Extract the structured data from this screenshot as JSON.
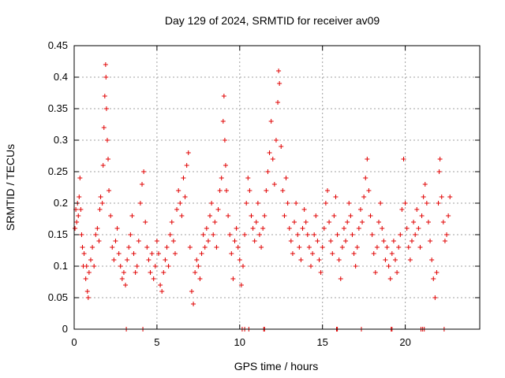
{
  "chart_data": {
    "type": "scatter",
    "title": "Day 129 of 2024, SRMTID for receiver av09",
    "xlabel": "GPS time / hours",
    "ylabel": "SRMTID / TECUs",
    "xlim": [
      0,
      24.5
    ],
    "ylim": [
      0,
      0.45
    ],
    "xticks": [
      0,
      5,
      10,
      15,
      20
    ],
    "xtick_labels": [
      "0",
      "5",
      "10",
      "15",
      "20"
    ],
    "yticks": [
      0,
      0.05,
      0.1,
      0.15,
      0.2,
      0.25,
      0.3,
      0.35,
      0.4,
      0.45
    ],
    "ytick_labels": [
      "0",
      "0.05",
      "0.1",
      "0.15",
      "0.2",
      "0.25",
      "0.3",
      "0.35",
      "0.4",
      "0.45"
    ],
    "grid": true,
    "marker": "+",
    "color": "#e00000",
    "series": [
      {
        "name": "SRMTID",
        "points": [
          [
            0.05,
            0.16
          ],
          [
            0.1,
            0.19
          ],
          [
            0.15,
            0.17
          ],
          [
            0.2,
            0.2
          ],
          [
            0.25,
            0.18
          ],
          [
            0.3,
            0.21
          ],
          [
            0.35,
            0.24
          ],
          [
            0.4,
            0.19
          ],
          [
            0.45,
            0.15
          ],
          [
            0.5,
            0.13
          ],
          [
            0.55,
            0.1
          ],
          [
            0.6,
            0.12
          ],
          [
            0.7,
            0.08
          ],
          [
            0.75,
            0.1
          ],
          [
            0.8,
            0.06
          ],
          [
            0.85,
            0.05
          ],
          [
            0.9,
            0.09
          ],
          [
            1.0,
            0.11
          ],
          [
            1.1,
            0.13
          ],
          [
            1.2,
            0.1
          ],
          [
            1.3,
            0.15
          ],
          [
            1.4,
            0.16
          ],
          [
            1.5,
            0.14
          ],
          [
            1.55,
            0.19
          ],
          [
            1.6,
            0.21
          ],
          [
            1.7,
            0.2
          ],
          [
            1.75,
            0.26
          ],
          [
            1.8,
            0.32
          ],
          [
            1.85,
            0.37
          ],
          [
            1.9,
            0.42
          ],
          [
            1.92,
            0.4
          ],
          [
            1.95,
            0.35
          ],
          [
            2.0,
            0.3
          ],
          [
            2.05,
            0.27
          ],
          [
            2.1,
            0.22
          ],
          [
            2.2,
            0.18
          ],
          [
            2.3,
            0.13
          ],
          [
            2.4,
            0.11
          ],
          [
            2.5,
            0.14
          ],
          [
            2.6,
            0.16
          ],
          [
            2.7,
            0.12
          ],
          [
            2.8,
            0.1
          ],
          [
            2.9,
            0.08
          ],
          [
            3.0,
            0.09
          ],
          [
            3.1,
            0.07
          ],
          [
            3.2,
            0.11
          ],
          [
            3.3,
            0.13
          ],
          [
            3.4,
            0.15
          ],
          [
            3.5,
            0.18
          ],
          [
            3.6,
            0.12
          ],
          [
            3.7,
            0.09
          ],
          [
            3.8,
            0.1
          ],
          [
            3.9,
            0.14
          ],
          [
            4.0,
            0.2
          ],
          [
            4.1,
            0.23
          ],
          [
            4.2,
            0.25
          ],
          [
            4.3,
            0.17
          ],
          [
            4.4,
            0.13
          ],
          [
            4.5,
            0.11
          ],
          [
            4.6,
            0.09
          ],
          [
            4.7,
            0.12
          ],
          [
            4.8,
            0.08
          ],
          [
            4.9,
            0.1
          ],
          [
            5.0,
            0.14
          ],
          [
            5.1,
            0.12
          ],
          [
            5.2,
            0.07
          ],
          [
            5.3,
            0.06
          ],
          [
            5.4,
            0.09
          ],
          [
            5.5,
            0.11
          ],
          [
            5.6,
            0.13
          ],
          [
            5.7,
            0.1
          ],
          [
            5.8,
            0.15
          ],
          [
            5.9,
            0.17
          ],
          [
            6.0,
            0.14
          ],
          [
            6.1,
            0.12
          ],
          [
            6.2,
            0.19
          ],
          [
            6.3,
            0.22
          ],
          [
            6.4,
            0.2
          ],
          [
            6.5,
            0.18
          ],
          [
            6.6,
            0.24
          ],
          [
            6.7,
            0.21
          ],
          [
            6.8,
            0.26
          ],
          [
            6.9,
            0.28
          ],
          [
            7.0,
            0.13
          ],
          [
            7.1,
            0.06
          ],
          [
            7.2,
            0.04
          ],
          [
            7.3,
            0.09
          ],
          [
            7.4,
            0.11
          ],
          [
            7.5,
            0.1
          ],
          [
            7.6,
            0.08
          ],
          [
            7.7,
            0.12
          ],
          [
            7.8,
            0.15
          ],
          [
            7.9,
            0.13
          ],
          [
            8.0,
            0.16
          ],
          [
            8.1,
            0.14
          ],
          [
            8.2,
            0.18
          ],
          [
            8.3,
            0.2
          ],
          [
            8.4,
            0.15
          ],
          [
            8.5,
            0.17
          ],
          [
            8.6,
            0.13
          ],
          [
            8.7,
            0.19
          ],
          [
            8.8,
            0.22
          ],
          [
            8.9,
            0.24
          ],
          [
            9.0,
            0.33
          ],
          [
            9.05,
            0.37
          ],
          [
            9.1,
            0.3
          ],
          [
            9.15,
            0.26
          ],
          [
            9.2,
            0.22
          ],
          [
            9.3,
            0.18
          ],
          [
            9.4,
            0.15
          ],
          [
            9.5,
            0.12
          ],
          [
            9.6,
            0.08
          ],
          [
            9.7,
            0.14
          ],
          [
            9.8,
            0.16
          ],
          [
            9.9,
            0.13
          ],
          [
            10.0,
            0.11
          ],
          [
            10.1,
            0.07
          ],
          [
            10.2,
            0.1
          ],
          [
            10.3,
            0.15
          ],
          [
            10.4,
            0.2
          ],
          [
            10.5,
            0.24
          ],
          [
            10.6,
            0.22
          ],
          [
            10.7,
            0.18
          ],
          [
            10.8,
            0.16
          ],
          [
            10.9,
            0.14
          ],
          [
            11.0,
            0.17
          ],
          [
            11.1,
            0.2
          ],
          [
            11.2,
            0.15
          ],
          [
            11.3,
            0.13
          ],
          [
            11.4,
            0.16
          ],
          [
            11.5,
            0.18
          ],
          [
            11.6,
            0.22
          ],
          [
            11.7,
            0.25
          ],
          [
            11.8,
            0.28
          ],
          [
            11.9,
            0.33
          ],
          [
            12.0,
            0.27
          ],
          [
            12.1,
            0.23
          ],
          [
            12.2,
            0.3
          ],
          [
            12.3,
            0.36
          ],
          [
            12.35,
            0.41
          ],
          [
            12.4,
            0.39
          ],
          [
            12.5,
            0.29
          ],
          [
            12.6,
            0.22
          ],
          [
            12.7,
            0.18
          ],
          [
            12.8,
            0.24
          ],
          [
            12.9,
            0.2
          ],
          [
            13.0,
            0.16
          ],
          [
            13.1,
            0.14
          ],
          [
            13.2,
            0.12
          ],
          [
            13.3,
            0.17
          ],
          [
            13.4,
            0.2
          ],
          [
            13.5,
            0.15
          ],
          [
            13.6,
            0.13
          ],
          [
            13.7,
            0.11
          ],
          [
            13.8,
            0.16
          ],
          [
            13.9,
            0.19
          ],
          [
            14.0,
            0.17
          ],
          [
            14.1,
            0.15
          ],
          [
            14.2,
            0.13
          ],
          [
            14.3,
            0.1
          ],
          [
            14.4,
            0.12
          ],
          [
            14.5,
            0.15
          ],
          [
            14.6,
            0.18
          ],
          [
            14.7,
            0.14
          ],
          [
            14.8,
            0.11
          ],
          [
            14.9,
            0.09
          ],
          [
            15.0,
            0.13
          ],
          [
            15.1,
            0.16
          ],
          [
            15.2,
            0.2
          ],
          [
            15.3,
            0.22
          ],
          [
            15.4,
            0.17
          ],
          [
            15.5,
            0.14
          ],
          [
            15.6,
            0.12
          ],
          [
            15.7,
            0.18
          ],
          [
            15.8,
            0.21
          ],
          [
            15.9,
            0.15
          ],
          [
            16.0,
            0.11
          ],
          [
            16.1,
            0.08
          ],
          [
            16.2,
            0.13
          ],
          [
            16.3,
            0.16
          ],
          [
            16.4,
            0.14
          ],
          [
            16.5,
            0.17
          ],
          [
            16.6,
            0.2
          ],
          [
            16.7,
            0.18
          ],
          [
            16.8,
            0.15
          ],
          [
            16.9,
            0.12
          ],
          [
            17.0,
            0.1
          ],
          [
            17.1,
            0.13
          ],
          [
            17.2,
            0.16
          ],
          [
            17.3,
            0.19
          ],
          [
            17.4,
            0.17
          ],
          [
            17.5,
            0.21
          ],
          [
            17.6,
            0.24
          ],
          [
            17.7,
            0.27
          ],
          [
            17.8,
            0.22
          ],
          [
            17.9,
            0.18
          ],
          [
            18.0,
            0.15
          ],
          [
            18.1,
            0.12
          ],
          [
            18.2,
            0.09
          ],
          [
            18.3,
            0.13
          ],
          [
            18.4,
            0.17
          ],
          [
            18.5,
            0.2
          ],
          [
            18.6,
            0.16
          ],
          [
            18.7,
            0.14
          ],
          [
            18.8,
            0.11
          ],
          [
            18.9,
            0.13
          ],
          [
            19.0,
            0.1
          ],
          [
            19.1,
            0.08
          ],
          [
            19.2,
            0.12
          ],
          [
            19.3,
            0.14
          ],
          [
            19.4,
            0.11
          ],
          [
            19.5,
            0.09
          ],
          [
            19.6,
            0.13
          ],
          [
            19.7,
            0.15
          ],
          [
            19.8,
            0.19
          ],
          [
            19.9,
            0.27
          ],
          [
            20.0,
            0.2
          ],
          [
            20.1,
            0.16
          ],
          [
            20.2,
            0.13
          ],
          [
            20.3,
            0.11
          ],
          [
            20.4,
            0.14
          ],
          [
            20.5,
            0.17
          ],
          [
            20.6,
            0.15
          ],
          [
            20.7,
            0.19
          ],
          [
            20.8,
            0.16
          ],
          [
            20.9,
            0.13
          ],
          [
            21.0,
            0.18
          ],
          [
            21.1,
            0.21
          ],
          [
            21.2,
            0.23
          ],
          [
            21.3,
            0.2
          ],
          [
            21.4,
            0.17
          ],
          [
            21.5,
            0.14
          ],
          [
            21.6,
            0.11
          ],
          [
            21.7,
            0.08
          ],
          [
            21.8,
            0.05
          ],
          [
            21.9,
            0.09
          ],
          [
            22.0,
            0.2
          ],
          [
            22.05,
            0.25
          ],
          [
            22.1,
            0.27
          ],
          [
            22.2,
            0.21
          ],
          [
            22.3,
            0.17
          ],
          [
            22.4,
            0.14
          ],
          [
            22.5,
            0.15
          ],
          [
            22.6,
            0.18
          ],
          [
            22.7,
            0.21
          ]
        ]
      }
    ],
    "zero_points_x": [
      3.15,
      4.15,
      10.15,
      10.3,
      10.55,
      11.45,
      11.5,
      15.85,
      15.9,
      17.35,
      19.15,
      19.2,
      20.95,
      21.05,
      21.15,
      22.35
    ]
  }
}
